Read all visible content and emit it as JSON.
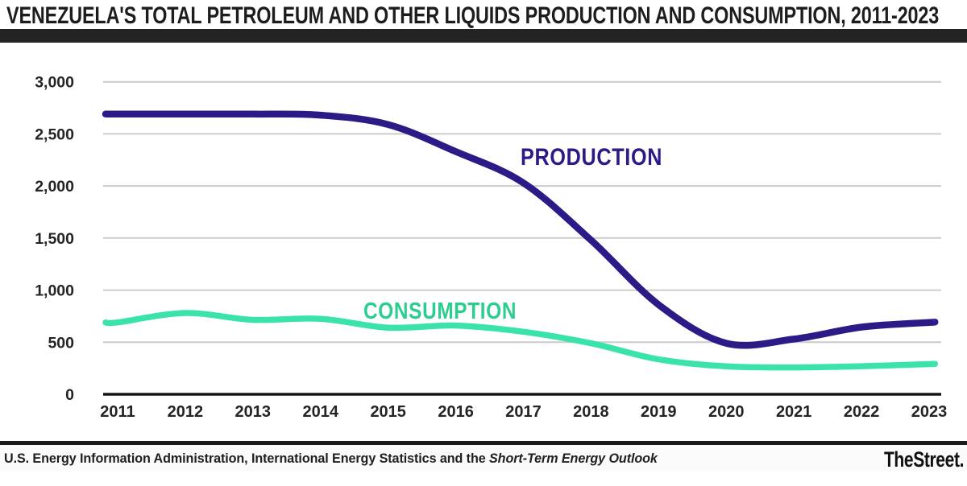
{
  "header": {
    "title": "VENEZUELA'S TOTAL PETROLEUM AND OTHER LIQUIDS PRODUCTION AND CONSUMPTION, 2011-2023"
  },
  "footer": {
    "source_regular": "U.S. Energy Information Administration, International Energy Statistics and the ",
    "source_italic": "Short-Term Energy Outlook",
    "brand": "TheStreet."
  },
  "colors": {
    "production_line": "#2b1b87",
    "consumption_line": "#3ae3a7",
    "consumption_label": "#2ccd90",
    "axis_text": "#242424",
    "gridline": "#cccccc",
    "axis_line": "#161616",
    "title_text": "#1d1d1e",
    "divider_bar": "#232323"
  },
  "chart_data": {
    "type": "line",
    "title": "VENEZUELA'S TOTAL PETROLEUM AND OTHER LIQUIDS PRODUCTION AND CONSUMPTION, 2011-2023",
    "categories": [
      "2011",
      "2012",
      "2013",
      "2014",
      "2015",
      "2016",
      "2017",
      "2018",
      "2019",
      "2020",
      "2021",
      "2022",
      "2023"
    ],
    "series": [
      {
        "name": "PRODUCTION",
        "color": "#2b1b87",
        "values": [
          2690,
          2690,
          2690,
          2680,
          2590,
          2330,
          2030,
          1480,
          860,
          490,
          530,
          645,
          690
        ]
      },
      {
        "name": "CONSUMPTION",
        "color": "#3ae3a7",
        "label_color": "#2ccd90",
        "values": [
          690,
          780,
          715,
          725,
          640,
          660,
          600,
          490,
          335,
          268,
          258,
          270,
          290
        ]
      }
    ],
    "yticks": [
      {
        "value": 3000,
        "label": "3,000"
      },
      {
        "value": 2500,
        "label": "2,500"
      },
      {
        "value": 2000,
        "label": "2,000"
      },
      {
        "value": 1500,
        "label": "1,500"
      },
      {
        "value": 1000,
        "label": "1,000"
      },
      {
        "value": 500,
        "label": "500"
      },
      {
        "value": 0,
        "label": "0"
      }
    ],
    "ylim": [
      0,
      3000
    ],
    "xlabel": "",
    "ylabel": "",
    "grid": true,
    "legend_position": "inline-labels-on-chart"
  }
}
